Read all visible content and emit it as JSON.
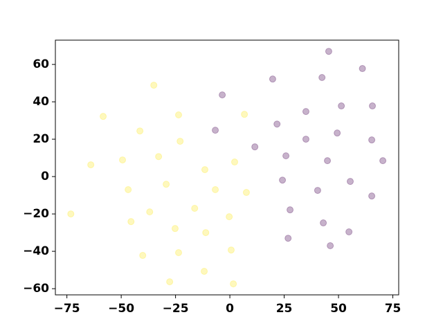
{
  "chart_data": {
    "type": "scatter",
    "xlim": [
      -80.3,
      77.7
    ],
    "ylim": [
      -63.3,
      73
    ],
    "xticks": [
      {
        "value": -75,
        "label": "−75"
      },
      {
        "value": -50,
        "label": "−50"
      },
      {
        "value": -25,
        "label": "−25"
      },
      0,
      25,
      50,
      75
    ],
    "yticks": [
      {
        "value": -60,
        "label": "−60"
      },
      {
        "value": -40,
        "label": "−40"
      },
      {
        "value": -20,
        "label": "−20"
      },
      0,
      20,
      40,
      60
    ],
    "alpha": 0.3,
    "series": [
      {
        "color": "#440154",
        "x": [
          45.5,
          61,
          19.7,
          42.4,
          -3.5,
          35,
          51.3,
          65.6,
          21.7,
          -6.7,
          49.4,
          35,
          65.3,
          11.5,
          25.8,
          44.9,
          70.4,
          24.2,
          55.4,
          40.4,
          65.3,
          27.7,
          43,
          54.8,
          26.8,
          46.2
        ],
        "values": [
          67,
          57.8,
          52.2,
          53,
          43.7,
          34.8,
          37.8,
          37.8,
          28.1,
          24.8,
          23.3,
          20,
          19.6,
          15.9,
          11.1,
          8.5,
          8.5,
          -1.9,
          -2.6,
          -7.4,
          -10.4,
          -17.8,
          -24.8,
          -29.6,
          -33,
          -37
        ]
      },
      {
        "color": "#fde725",
        "x": [
          -35,
          -58.3,
          -23.6,
          6.7,
          -41.4,
          -22.9,
          -32.8,
          -49.4,
          -64,
          2.2,
          -11.5,
          -29.3,
          -46.8,
          -6.7,
          7.6,
          -73.2,
          -36.9,
          -16.2,
          -45.5,
          -0.3,
          -25.2,
          -11.1,
          -40.1,
          -23.6,
          0.6,
          -11.8,
          -27.7,
          1.6
        ],
        "values": [
          48.9,
          32.2,
          33,
          33.3,
          24.4,
          18.9,
          10.7,
          8.9,
          6.3,
          7.8,
          3.7,
          -4.1,
          -7,
          -7,
          -8.5,
          -20,
          -18.9,
          -17,
          -24.1,
          -21.5,
          -27.8,
          -30,
          -42.2,
          -40.7,
          -39.3,
          -50.7,
          -56.3,
          -57.4
        ]
      }
    ]
  }
}
